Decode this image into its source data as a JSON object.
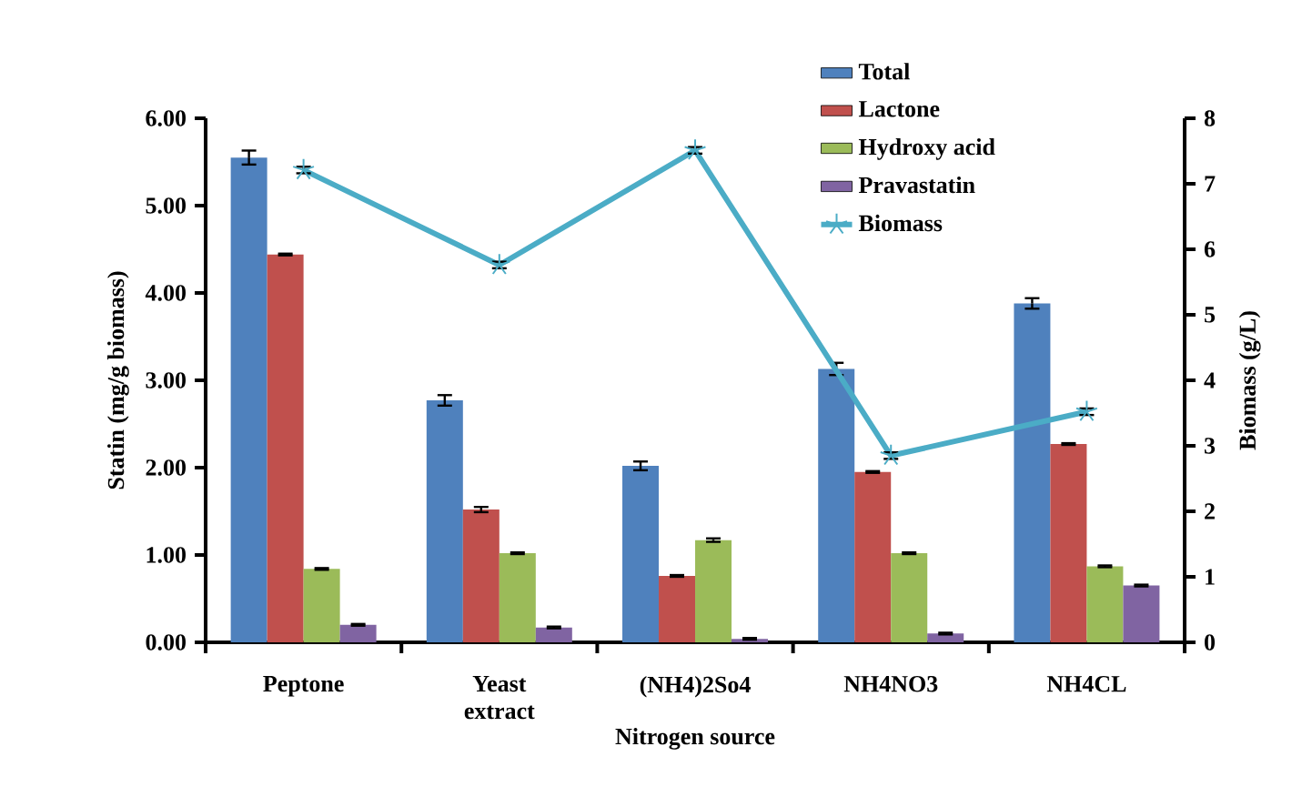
{
  "chart_data": {
    "type": "bar",
    "xlabel": "Nitrogen source",
    "ylabel": "Statin (mg/g biomass)",
    "y2label": "Biomass (g/L)",
    "categories": [
      "Peptone",
      "Yeast extract",
      "(NH4)2So4",
      "NH4NO3",
      "NH4CL"
    ],
    "series": [
      {
        "name": "Total",
        "color": "#4f81bd",
        "values": [
          5.55,
          2.77,
          2.02,
          3.13,
          3.88
        ],
        "errors": [
          0.08,
          0.06,
          0.05,
          0.07,
          0.06
        ]
      },
      {
        "name": "Lactone",
        "color": "#c0504d",
        "values": [
          4.44,
          1.52,
          0.76,
          1.95,
          2.27
        ],
        "errors": [
          0.01,
          0.03,
          0.01,
          0.01,
          0.01
        ]
      },
      {
        "name": "Hydroxy acid",
        "color": "#9bbb59",
        "values": [
          0.84,
          1.02,
          1.17,
          1.02,
          0.87
        ],
        "errors": [
          0.01,
          0.01,
          0.02,
          0.01,
          0.01
        ]
      },
      {
        "name": "Pravastatin",
        "color": "#8064a2",
        "values": [
          0.2,
          0.17,
          0.04,
          0.1,
          0.65
        ],
        "errors": [
          0.01,
          0.01,
          0.01,
          0.01,
          0.01
        ]
      },
      {
        "name": "Biomass",
        "type": "line",
        "axis": "y2",
        "color": "#4bacc6",
        "marker": "cross",
        "values": [
          7.21,
          5.76,
          7.51,
          2.85,
          3.52
        ],
        "errors": [
          0.05,
          0.05,
          0.05,
          0.05,
          0.05
        ]
      }
    ],
    "ylim": [
      0,
      6
    ],
    "yticks": [
      {
        "value": 0,
        "label": "0.00"
      },
      {
        "value": 1,
        "label": "1.00"
      },
      {
        "value": 2,
        "label": "2.00"
      },
      {
        "value": 3,
        "label": "3.00"
      },
      {
        "value": 4,
        "label": "4.00"
      },
      {
        "value": 5,
        "label": "5.00"
      },
      {
        "value": 6,
        "label": "6.00"
      }
    ],
    "y2lim": [
      0,
      8
    ],
    "y2ticks": [
      0,
      1,
      2,
      3,
      4,
      5,
      6,
      7,
      8
    ],
    "grid": false,
    "legend": "top right"
  }
}
